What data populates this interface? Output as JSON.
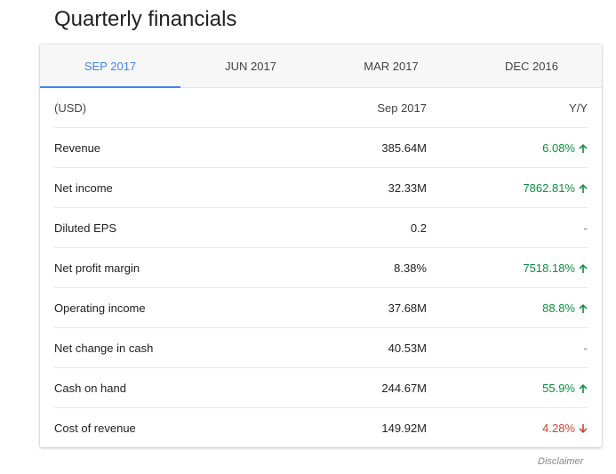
{
  "title": "Quarterly financials",
  "tabs": [
    {
      "label": "SEP 2017"
    },
    {
      "label": "JUN 2017"
    },
    {
      "label": "MAR 2017"
    },
    {
      "label": "DEC 2016"
    }
  ],
  "active_tab_index": 0,
  "colors": {
    "accent": "#4285f4",
    "positive": "#0a8f3e",
    "negative": "#d23f31"
  },
  "table": {
    "header": {
      "label": "(USD)",
      "value": "Sep 2017",
      "change": "Y/Y"
    },
    "rows": [
      {
        "label": "Revenue",
        "value": "385.64M",
        "change": "6.08%",
        "trend": "up",
        "icon": "arrow-up-icon"
      },
      {
        "label": "Net income",
        "value": "32.33M",
        "change": "7862.81%",
        "trend": "up",
        "icon": "arrow-up-icon"
      },
      {
        "label": "Diluted EPS",
        "value": "0.2",
        "change": "-",
        "trend": "none"
      },
      {
        "label": "Net profit margin",
        "value": "8.38%",
        "change": "7518.18%",
        "trend": "up",
        "icon": "arrow-up-icon"
      },
      {
        "label": "Operating income",
        "value": "37.68M",
        "change": "88.8%",
        "trend": "up",
        "icon": "arrow-up-icon"
      },
      {
        "label": "Net change in cash",
        "value": "40.53M",
        "change": "-",
        "trend": "none"
      },
      {
        "label": "Cash on hand",
        "value": "244.67M",
        "change": "55.9%",
        "trend": "up",
        "icon": "arrow-up-icon"
      },
      {
        "label": "Cost of revenue",
        "value": "149.92M",
        "change": "4.28%",
        "trend": "down",
        "icon": "arrow-down-icon"
      }
    ]
  },
  "disclaimer": "Disclaimer"
}
